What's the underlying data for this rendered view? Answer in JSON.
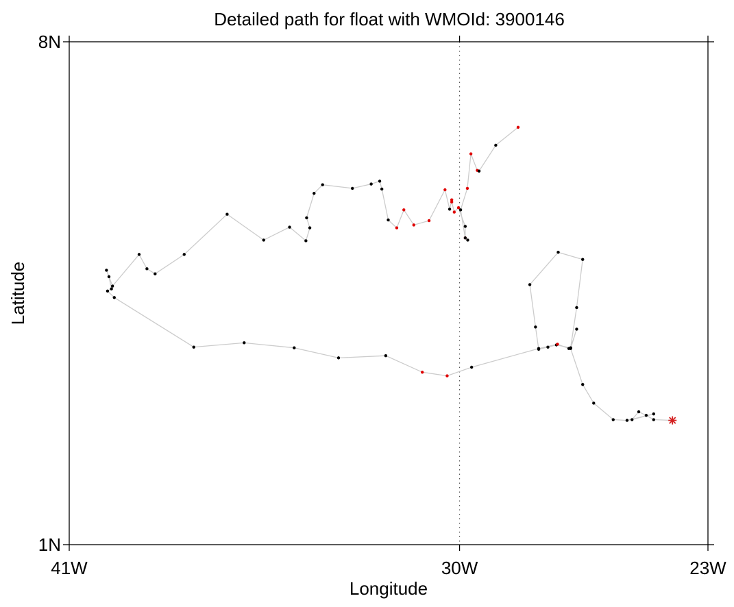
{
  "chart_data": {
    "type": "scatter",
    "title": "Detailed path for float with WMOId: 3900146",
    "xlabel": "Longitude",
    "ylabel": "Latitude",
    "xlim": [
      -41,
      -23
    ],
    "ylim": [
      1,
      8
    ],
    "x_ticks": [
      {
        "value": -41,
        "label": "41W"
      },
      {
        "value": -30,
        "label": "30W"
      },
      {
        "value": -23,
        "label": "23W"
      }
    ],
    "y_ticks": [
      {
        "value": 8,
        "label": "8N"
      },
      {
        "value": 1,
        "label": "1N"
      }
    ],
    "reference_line": {
      "x": -30,
      "style": "dotted"
    },
    "grid": false,
    "legend": "none",
    "colors": {
      "track": "#cccccc",
      "normal_point": "#000000",
      "flagged_point": "#e00000",
      "start_marker": "#d42020",
      "axes": "#000000",
      "reference_line": "#555555"
    },
    "track": [
      {
        "lon": -24.0,
        "lat": 2.73,
        "flag": "start"
      },
      {
        "lon": -24.53,
        "lat": 2.74,
        "flag": "normal"
      },
      {
        "lon": -24.74,
        "lat": 2.8,
        "flag": "normal"
      },
      {
        "lon": -24.95,
        "lat": 2.85,
        "flag": "normal"
      },
      {
        "lon": -25.14,
        "lat": 2.74,
        "flag": "normal"
      },
      {
        "lon": -24.53,
        "lat": 2.82,
        "flag": "normal"
      },
      {
        "lon": -25.28,
        "lat": 2.73,
        "flag": "normal"
      },
      {
        "lon": -25.67,
        "lat": 2.74,
        "flag": "normal"
      },
      {
        "lon": -26.22,
        "lat": 2.97,
        "flag": "normal"
      },
      {
        "lon": -26.53,
        "lat": 3.23,
        "flag": "normal"
      },
      {
        "lon": -26.87,
        "lat": 3.73,
        "flag": "normal"
      },
      {
        "lon": -26.7,
        "lat": 4.0,
        "flag": "normal"
      },
      {
        "lon": -26.87,
        "lat": 3.74,
        "flag": "normal"
      },
      {
        "lon": -27.27,
        "lat": 3.78,
        "flag": "normal"
      },
      {
        "lon": -27.51,
        "lat": 3.75,
        "flag": "normal"
      },
      {
        "lon": -27.77,
        "lat": 3.72,
        "flag": "normal"
      },
      {
        "lon": -27.86,
        "lat": 4.03,
        "flag": "normal"
      },
      {
        "lon": -28.02,
        "lat": 4.62,
        "flag": "normal"
      },
      {
        "lon": -27.22,
        "lat": 5.07,
        "flag": "normal"
      },
      {
        "lon": -26.53,
        "lat": 4.97,
        "flag": "normal"
      },
      {
        "lon": -26.7,
        "lat": 4.3,
        "flag": "normal"
      },
      {
        "lon": -26.87,
        "lat": 3.74,
        "flag": "normal"
      },
      {
        "lon": -26.92,
        "lat": 3.73,
        "flag": "normal"
      },
      {
        "lon": -27.24,
        "lat": 3.79,
        "flag": "flagged"
      },
      {
        "lon": -27.77,
        "lat": 3.73,
        "flag": "normal"
      },
      {
        "lon": -29.66,
        "lat": 3.47,
        "flag": "normal"
      },
      {
        "lon": -30.35,
        "lat": 3.35,
        "flag": "flagged"
      },
      {
        "lon": -31.05,
        "lat": 3.4,
        "flag": "flagged"
      },
      {
        "lon": -32.08,
        "lat": 3.63,
        "flag": "normal"
      },
      {
        "lon": -33.41,
        "lat": 3.6,
        "flag": "normal"
      },
      {
        "lon": -34.66,
        "lat": 3.74,
        "flag": "normal"
      },
      {
        "lon": -36.07,
        "lat": 3.81,
        "flag": "normal"
      },
      {
        "lon": -37.49,
        "lat": 3.75,
        "flag": "normal"
      },
      {
        "lon": -39.73,
        "lat": 4.44,
        "flag": "normal"
      },
      {
        "lon": -39.92,
        "lat": 4.53,
        "flag": "normal"
      },
      {
        "lon": -39.81,
        "lat": 4.56,
        "flag": "normal"
      },
      {
        "lon": -39.88,
        "lat": 4.73,
        "flag": "normal"
      },
      {
        "lon": -39.95,
        "lat": 4.82,
        "flag": "normal"
      },
      {
        "lon": -39.78,
        "lat": 4.6,
        "flag": "normal"
      },
      {
        "lon": -39.03,
        "lat": 5.04,
        "flag": "normal"
      },
      {
        "lon": -38.81,
        "lat": 4.84,
        "flag": "normal"
      },
      {
        "lon": -38.58,
        "lat": 4.77,
        "flag": "normal"
      },
      {
        "lon": -37.76,
        "lat": 5.04,
        "flag": "normal"
      },
      {
        "lon": -36.55,
        "lat": 5.6,
        "flag": "normal"
      },
      {
        "lon": -35.52,
        "lat": 5.24,
        "flag": "normal"
      },
      {
        "lon": -34.79,
        "lat": 5.42,
        "flag": "normal"
      },
      {
        "lon": -34.33,
        "lat": 5.23,
        "flag": "normal"
      },
      {
        "lon": -34.22,
        "lat": 5.41,
        "flag": "normal"
      },
      {
        "lon": -34.31,
        "lat": 5.55,
        "flag": "normal"
      },
      {
        "lon": -34.1,
        "lat": 5.89,
        "flag": "normal"
      },
      {
        "lon": -33.86,
        "lat": 6.01,
        "flag": "normal"
      },
      {
        "lon": -33.02,
        "lat": 5.96,
        "flag": "normal"
      },
      {
        "lon": -32.49,
        "lat": 6.02,
        "flag": "normal"
      },
      {
        "lon": -32.25,
        "lat": 6.06,
        "flag": "normal"
      },
      {
        "lon": -32.19,
        "lat": 5.95,
        "flag": "normal"
      },
      {
        "lon": -32.01,
        "lat": 5.52,
        "flag": "normal"
      },
      {
        "lon": -31.77,
        "lat": 5.41,
        "flag": "flagged"
      },
      {
        "lon": -31.57,
        "lat": 5.66,
        "flag": "flagged"
      },
      {
        "lon": -31.29,
        "lat": 5.45,
        "flag": "flagged"
      },
      {
        "lon": -30.86,
        "lat": 5.51,
        "flag": "flagged"
      },
      {
        "lon": -30.41,
        "lat": 5.94,
        "flag": "flagged"
      },
      {
        "lon": -30.28,
        "lat": 5.67,
        "flag": "normal"
      },
      {
        "lon": -30.22,
        "lat": 5.8,
        "flag": "flagged"
      },
      {
        "lon": -30.22,
        "lat": 5.77,
        "flag": "flagged"
      },
      {
        "lon": -30.15,
        "lat": 5.63,
        "flag": "flagged"
      },
      {
        "lon": -30.03,
        "lat": 5.69,
        "flag": "flagged"
      },
      {
        "lon": -29.84,
        "lat": 5.43,
        "flag": "normal"
      },
      {
        "lon": -29.84,
        "lat": 5.27,
        "flag": "flagged"
      },
      {
        "lon": -29.77,
        "lat": 5.24,
        "flag": "normal"
      },
      {
        "lon": -29.84,
        "lat": 5.27,
        "flag": "normal"
      },
      {
        "lon": -29.97,
        "lat": 5.66,
        "flag": "normal"
      },
      {
        "lon": -29.78,
        "lat": 5.96,
        "flag": "flagged"
      },
      {
        "lon": -29.68,
        "lat": 6.44,
        "flag": "flagged"
      },
      {
        "lon": -29.5,
        "lat": 6.21,
        "flag": "flagged"
      },
      {
        "lon": -29.45,
        "lat": 6.2,
        "flag": "normal"
      },
      {
        "lon": -28.98,
        "lat": 6.56,
        "flag": "normal"
      },
      {
        "lon": -28.35,
        "lat": 6.81,
        "flag": "flagged"
      }
    ]
  }
}
